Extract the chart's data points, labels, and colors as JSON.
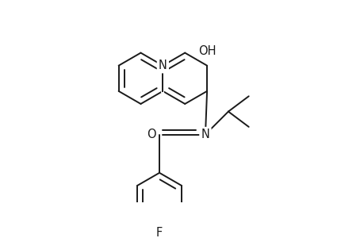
{
  "bg_color": "#ffffff",
  "line_color": "#1a1a1a",
  "line_width": 1.4,
  "font_size": 10.5,
  "figsize": [
    4.6,
    3.0
  ],
  "dpi": 100,
  "xlim": [
    0,
    460
  ],
  "ylim": [
    0,
    300
  ]
}
